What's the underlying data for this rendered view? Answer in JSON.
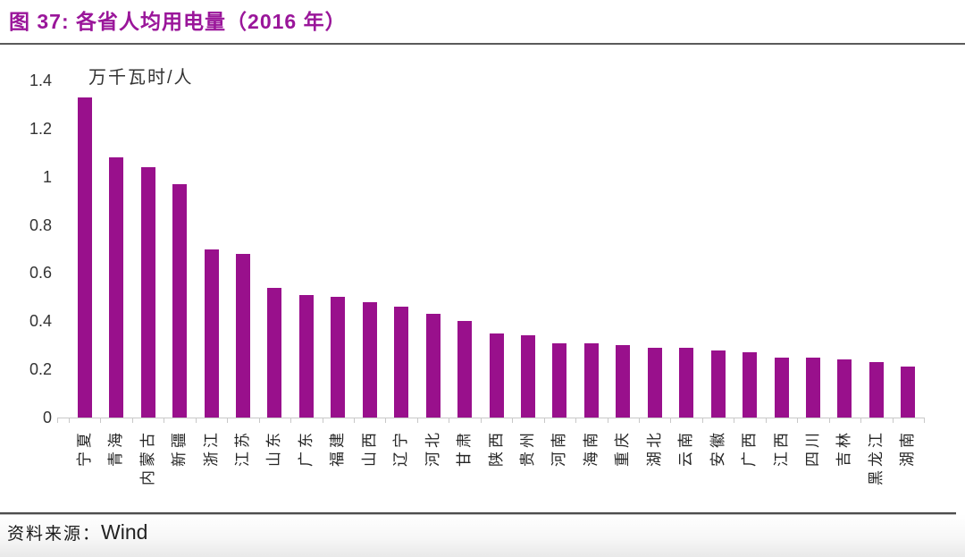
{
  "header": {
    "title": "图 37:  各省人均用电量（2016 年）"
  },
  "footer": {
    "source_label": "资料来源：",
    "source_value": "Wind"
  },
  "chart_data": {
    "type": "bar",
    "title": "各省人均用电量（2016 年）",
    "xlabel": "",
    "ylabel": "万千瓦时/人",
    "categories": [
      "宁夏",
      "青海",
      "内蒙古",
      "新疆",
      "浙江",
      "江苏",
      "山东",
      "广东",
      "福建",
      "山西",
      "辽宁",
      "河北",
      "甘肃",
      "陕西",
      "贵州",
      "河南",
      "海南",
      "重庆",
      "湖北",
      "云南",
      "安徽",
      "广西",
      "江西",
      "四川",
      "吉林",
      "黑龙江",
      "湖南"
    ],
    "values": [
      1.33,
      1.08,
      1.04,
      0.97,
      0.7,
      0.68,
      0.54,
      0.51,
      0.5,
      0.48,
      0.46,
      0.43,
      0.4,
      0.35,
      0.34,
      0.31,
      0.31,
      0.3,
      0.29,
      0.29,
      0.28,
      0.27,
      0.25,
      0.25,
      0.24,
      0.23,
      0.21
    ],
    "ylim": [
      0,
      1.4
    ],
    "ytick_labels": [
      "1.4",
      "1.2",
      "1",
      "0.8",
      "0.6",
      "0.4",
      "0.2",
      "0"
    ],
    "grid": false,
    "legend": false,
    "bar_color": "#99108C"
  },
  "colors": {
    "accent": "#99108C",
    "title_text": "#9A169A",
    "axis_line": "#C8C8C8",
    "divider": "#5A5A5A",
    "tick_text": "#333333",
    "category_text": "#262626"
  }
}
